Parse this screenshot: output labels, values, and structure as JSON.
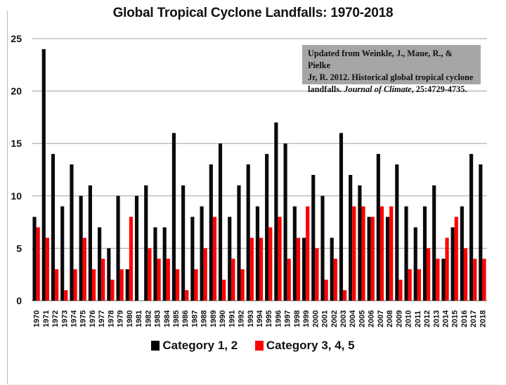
{
  "chart_data": {
    "type": "bar",
    "title": "Global Tropical Cyclone Landfalls: 1970-2018",
    "xlabel": "",
    "ylabel": "",
    "ylim": [
      0,
      25
    ],
    "yticks": [
      0,
      5,
      10,
      15,
      20,
      25
    ],
    "grid": true,
    "legend_position": "bottom",
    "categories": [
      "1970",
      "1971",
      "1972",
      "1973",
      "1974",
      "1975",
      "1976",
      "1977",
      "1978",
      "1979",
      "1980",
      "1981",
      "1982",
      "1983",
      "1984",
      "1985",
      "1986",
      "1987",
      "1988",
      "1989",
      "1990",
      "1991",
      "1992",
      "1993",
      "1994",
      "1995",
      "1996",
      "1997",
      "1998",
      "1999",
      "2000",
      "2001",
      "2002",
      "2003",
      "2004",
      "2005",
      "2006",
      "2007",
      "2008",
      "2009",
      "2010",
      "2011",
      "2012",
      "2013",
      "2014",
      "2015",
      "2016",
      "2017",
      "2018"
    ],
    "series": [
      {
        "name": "Category 1, 2",
        "color": "#000000",
        "values": [
          8,
          24,
          14,
          9,
          13,
          10,
          11,
          7,
          5,
          10,
          3,
          10,
          11,
          7,
          7,
          16,
          11,
          8,
          9,
          13,
          15,
          8,
          11,
          13,
          9,
          14,
          17,
          15,
          9,
          6,
          12,
          10,
          6,
          16,
          12,
          11,
          8,
          14,
          8,
          13,
          9,
          7,
          9,
          11,
          4,
          7,
          9,
          14,
          13
        ]
      },
      {
        "name": "Category 3, 4, 5",
        "color": "#ff0000",
        "values": [
          7,
          6,
          3,
          1,
          3,
          6,
          3,
          4,
          2,
          3,
          8,
          0,
          5,
          4,
          4,
          3,
          1,
          3,
          5,
          8,
          2,
          4,
          3,
          6,
          6,
          7,
          8,
          4,
          6,
          9,
          5,
          2,
          4,
          1,
          9,
          9,
          8,
          9,
          9,
          2,
          3,
          3,
          5,
          4,
          6,
          8,
          5,
          4,
          4
        ]
      }
    ],
    "annotation": {
      "line1": "Updated from Weinkle, J., Maue, R., & Pielke",
      "line2": "Jr, R. 2012. Historical global tropical cyclone",
      "line3_pre": "landfalls. ",
      "line3_italic": "Journal of Climate",
      "line3_post": ", 25:4729-4735."
    }
  }
}
